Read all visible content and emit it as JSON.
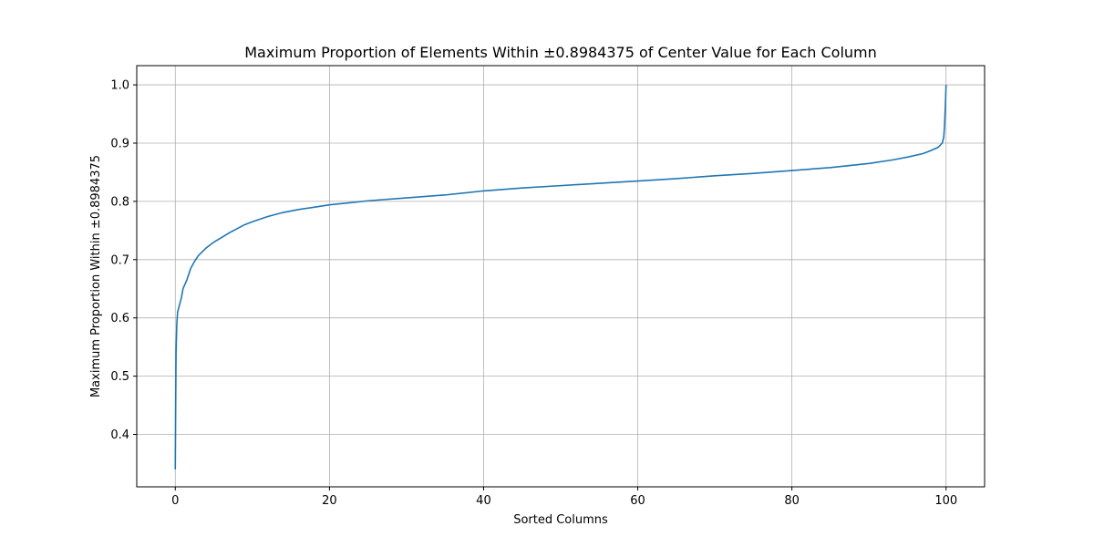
{
  "chart_data": {
    "type": "line",
    "title": "Maximum Proportion of Elements Within ±0.8984375 of Center Value for Each Column",
    "xlabel": "Sorted Columns",
    "ylabel": "Maximum Proportion Within ±0.8984375",
    "xlim": [
      -5,
      105
    ],
    "ylim": [
      0.31,
      1.033
    ],
    "grid": true,
    "line_color": "#1f77b4",
    "x_ticks": [
      0,
      20,
      40,
      60,
      80,
      100
    ],
    "x_tick_labels": [
      "0",
      "20",
      "40",
      "60",
      "80",
      "100"
    ],
    "y_ticks": [
      0.4,
      0.5,
      0.6,
      0.7,
      0.8,
      0.9,
      1.0
    ],
    "y_tick_labels": [
      "0.4",
      "0.5",
      "0.6",
      "0.7",
      "0.8",
      "0.9",
      "1.0"
    ],
    "series": [
      {
        "x": [
          0,
          0.05,
          0.1,
          0.2,
          0.3,
          0.5,
          0.8,
          1.0,
          1.5,
          2.0,
          2.5,
          3.0,
          4.0,
          5.0,
          6.0,
          7.0,
          8.0,
          9.0,
          10.0,
          12.0,
          14.0,
          16.0,
          18.0,
          20.0,
          25.0,
          30.0,
          35.0,
          40.0,
          45.0,
          50.0,
          55.0,
          60.0,
          65.0,
          70.0,
          75.0,
          80.0,
          85.0,
          90.0,
          93.0,
          95.0,
          97.0,
          98.0,
          99.0,
          99.5,
          99.7,
          99.8,
          99.9,
          100.0
        ],
        "y": [
          0.34,
          0.45,
          0.54,
          0.59,
          0.61,
          0.62,
          0.635,
          0.65,
          0.665,
          0.685,
          0.697,
          0.707,
          0.72,
          0.73,
          0.738,
          0.746,
          0.753,
          0.76,
          0.765,
          0.774,
          0.781,
          0.786,
          0.79,
          0.794,
          0.801,
          0.806,
          0.811,
          0.818,
          0.823,
          0.827,
          0.831,
          0.835,
          0.839,
          0.844,
          0.848,
          0.853,
          0.858,
          0.865,
          0.871,
          0.876,
          0.882,
          0.887,
          0.893,
          0.9,
          0.91,
          0.93,
          0.96,
          1.0
        ]
      }
    ]
  }
}
